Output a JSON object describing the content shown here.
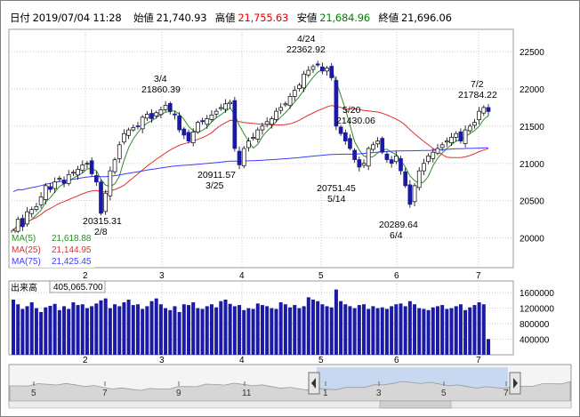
{
  "header": {
    "date_label": "日付",
    "date_value": "2019/07/04 11:28",
    "open_label": "始値",
    "open_value": "21,740.93",
    "high_label": "高値",
    "high_value": "21,755.63",
    "low_label": "安値",
    "low_value": "21,684.96",
    "close_label": "終値",
    "close_value": "21,696.06"
  },
  "colors": {
    "candle_up": "#ffffff",
    "candle_down": "#1a1aa6",
    "ma5": "#2e8b2e",
    "ma25": "#e03030",
    "ma75": "#3c3cff",
    "volume": "#1a1aa6",
    "high_value": "#e00000",
    "low_value": "#008000"
  },
  "chart_data": [
    {
      "type": "candlestick",
      "x_tick_labels": [
        "2",
        "3",
        "4",
        "5",
        "6",
        "7"
      ],
      "y_tick_labels": [
        "22500",
        "22000",
        "21500",
        "21000",
        "20500",
        "20000"
      ],
      "ylim": [
        19600,
        22800
      ],
      "grid": true,
      "legend_position": "bottom-left",
      "legend": [
        {
          "name": "MA(5)",
          "value": "21,618.88"
        },
        {
          "name": "MA(25)",
          "value": "21,144.95"
        },
        {
          "name": "MA(75)",
          "value": "21,425.45"
        }
      ],
      "annotations": [
        {
          "text": "20315.31",
          "date": "2/8",
          "value": 20315.31
        },
        {
          "text": "21860.39",
          "date": "3/4",
          "value": 21860.39
        },
        {
          "text": "20911.57",
          "date": "3/25",
          "value": 20911.57
        },
        {
          "text": "22362.92",
          "date": "4/24",
          "value": 22362.92
        },
        {
          "text": "21430.06",
          "date": "5/20",
          "value": 21430.06
        },
        {
          "text": "20751.45",
          "date": "5/14",
          "value": 20751.45
        },
        {
          "text": "20289.64",
          "date": "6/4",
          "value": 20289.64
        },
        {
          "text": "21784.22",
          "date": "7/2",
          "value": 21784.22
        }
      ],
      "closes": [
        20100,
        20250,
        20150,
        20350,
        20380,
        20420,
        20550,
        20700,
        20650,
        20750,
        20800,
        20730,
        20850,
        20880,
        20920,
        20980,
        21000,
        20860,
        20750,
        20330,
        20600,
        20900,
        21050,
        21250,
        21400,
        21450,
        21480,
        21500,
        21620,
        21660,
        21600,
        21680,
        21720,
        21780,
        21700,
        21650,
        21450,
        21380,
        21300,
        21420,
        21550,
        21560,
        21600,
        21650,
        21700,
        21750,
        21800,
        21820,
        21200,
        20980,
        21200,
        21300,
        21350,
        21450,
        21500,
        21560,
        21600,
        21700,
        21750,
        21800,
        21900,
        21980,
        22050,
        22200,
        22250,
        22300,
        22320,
        22240,
        22280,
        22150,
        21500,
        21400,
        21300,
        21200,
        21050,
        20950,
        21000,
        21200,
        21250,
        21300,
        21150,
        21050,
        21000,
        21100,
        20900,
        20700,
        20450,
        20700,
        20900,
        21000,
        21100,
        21150,
        21200,
        21250,
        21300,
        21350,
        21400,
        21300,
        21450,
        21500,
        21550,
        21700,
        21750,
        21696
      ]
    },
    {
      "type": "bar",
      "title": "出来高",
      "title_value": "405,065.700",
      "y_tick_labels": [
        "1600000",
        "1200000",
        "800000",
        "400000"
      ],
      "ylim": [
        0,
        1900000
      ],
      "values": [
        1420000,
        1300000,
        1180000,
        1250000,
        1350000,
        1200000,
        1100000,
        1220000,
        1260000,
        1310000,
        1150000,
        1250000,
        1180000,
        1350000,
        1280000,
        1300000,
        1200000,
        1250000,
        1320000,
        1400000,
        1450000,
        1200000,
        1300000,
        1250000,
        1350000,
        1420000,
        1280000,
        1300000,
        1180000,
        1250000,
        1380000,
        1450000,
        1300000,
        1200000,
        1150000,
        1250000,
        1100000,
        1300000,
        1280000,
        1350000,
        1200000,
        1180000,
        1250000,
        1300000,
        1220000,
        1380000,
        1420000,
        1310000,
        1250000,
        1280000,
        1150000,
        1200000,
        1180000,
        1320000,
        1280000,
        1250000,
        1200000,
        1180000,
        1350000,
        1300000,
        1220000,
        1280000,
        1200000,
        1250000,
        1480000,
        1420000,
        1380000,
        1300000,
        1250000,
        1220000,
        1680000,
        1380000,
        1300000,
        1250000,
        1200000,
        1280000,
        1300000,
        1180000,
        1250000,
        1200000,
        1220000,
        1180000,
        1250000,
        1300000,
        1320000,
        1250000,
        1380000,
        1300000,
        1200000,
        1180000,
        1150000,
        1220000,
        1250000,
        1280000,
        1180000,
        1200000,
        1250000,
        1300000,
        1150000,
        1220000,
        1280000,
        1350000,
        1300000,
        405066
      ]
    }
  ],
  "navigator": {
    "tick_labels": [
      "5",
      "7",
      "9",
      "11",
      "1",
      "3",
      "5",
      "7"
    ]
  }
}
